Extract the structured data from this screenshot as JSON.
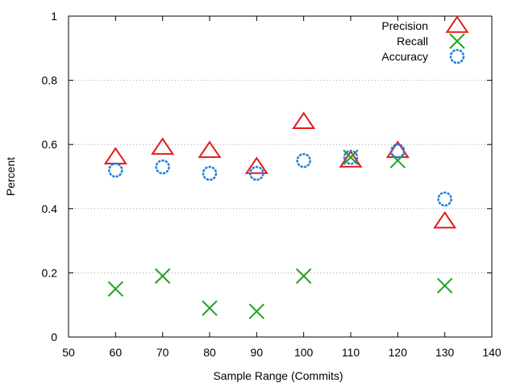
{
  "chart_data": {
    "type": "scatter",
    "title": "",
    "xlabel": "Sample Range (Commits)",
    "ylabel": "Percent",
    "xlim": [
      50,
      140
    ],
    "ylim": [
      0,
      1
    ],
    "xticks": [
      "50",
      "60",
      "70",
      "80",
      "90",
      "100",
      "110",
      "120",
      "130",
      "140"
    ],
    "yticks": [
      "0",
      "0.2",
      "0.4",
      "0.6",
      "0.8",
      "1"
    ],
    "grid": "horizontal dotted",
    "legend_position": "top-right",
    "x": [
      60,
      70,
      80,
      90,
      100,
      110,
      120,
      130
    ],
    "series": [
      {
        "name": "Precision",
        "marker": "triangle",
        "color": "#e41a1c",
        "values": [
          0.56,
          0.59,
          0.58,
          0.53,
          0.67,
          0.55,
          0.58,
          0.36
        ]
      },
      {
        "name": "Recall",
        "marker": "cross",
        "color": "#21a121",
        "values": [
          0.15,
          0.19,
          0.09,
          0.08,
          0.19,
          0.56,
          0.55,
          0.16
        ]
      },
      {
        "name": "Accuracy",
        "marker": "circle",
        "color": "#1e7fe0",
        "values": [
          0.52,
          0.53,
          0.51,
          0.51,
          0.55,
          0.56,
          0.58,
          0.43
        ]
      }
    ]
  }
}
